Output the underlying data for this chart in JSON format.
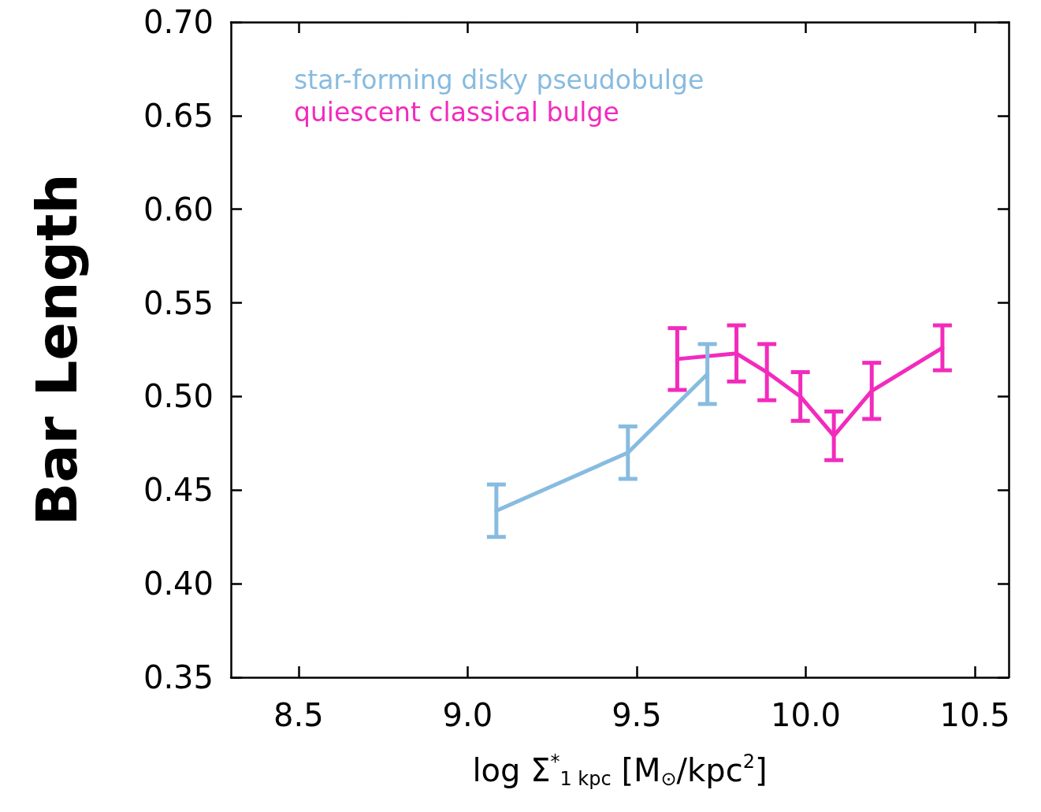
{
  "chart_data": {
    "type": "line",
    "xlabel": "log Σ$^{*}$$_{1 kpc}$ [M$_{⊙}$/kpc$^{2}$]",
    "ylabel": "Bar Length",
    "xlim": [
      8.3,
      10.6
    ],
    "xticks": [
      8.5,
      {
        "value": 9,
        "label": "9.0"
      },
      9.5,
      {
        "value": 10,
        "label": "10.0"
      },
      10.5
    ],
    "ylim": [
      0.35,
      0.7
    ],
    "yticks": [
      0.35,
      {
        "value": 0.4,
        "label": "0.40"
      },
      0.45,
      {
        "value": 0.5,
        "label": "0.50"
      },
      0.55,
      {
        "value": 0.6,
        "label": "0.60"
      },
      0.65,
      {
        "value": 0.7,
        "label": "0.70"
      }
    ],
    "series": [
      {
        "name": "star-forming disky pseudobulge",
        "color": "#88bbe0",
        "x": [
          9.085,
          9.474,
          9.709
        ],
        "values": [
          0.439,
          0.47,
          0.512
        ],
        "errors": [
          0.014,
          0.014,
          0.016
        ]
      },
      {
        "name": "quiescent classical bulge",
        "color": "#f22bbd",
        "x": [
          9.62,
          9.795,
          9.885,
          9.984,
          10.083,
          10.195,
          10.404
        ],
        "values": [
          0.52,
          0.523,
          0.513,
          0.5,
          0.479,
          0.503,
          0.526
        ],
        "errors": [
          0.0165,
          0.015,
          0.015,
          0.013,
          0.013,
          0.015,
          0.012
        ]
      }
    ],
    "legend": "top left",
    "grid": false,
    "marker": "none",
    "line_style": "solid"
  }
}
